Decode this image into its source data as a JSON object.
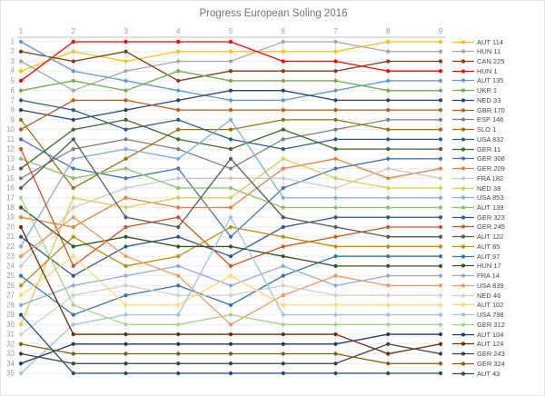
{
  "chart_data": {
    "type": "line",
    "subtype": "bump-rank-progression",
    "title": "Progress European Soling 2016",
    "xlabel": "",
    "ylabel": "",
    "x_axis_position": "top",
    "x_ticks": [
      "1",
      "2",
      "3",
      "4",
      "5",
      "6",
      "7",
      "8",
      "9"
    ],
    "y_ticks": [
      "1",
      "2",
      "3",
      "4",
      "5",
      "6",
      "7",
      "8",
      "9",
      "10",
      "11",
      "12",
      "13",
      "14",
      "15",
      "16",
      "17",
      "18",
      "19",
      "20",
      "21",
      "22",
      "23",
      "24",
      "25",
      "26",
      "27",
      "28",
      "29",
      "30",
      "31",
      "32",
      "33",
      "34",
      "35"
    ],
    "y_axis": {
      "min": 1,
      "max": 35,
      "inverted": true,
      "meaning": "position"
    },
    "grid": true,
    "legend_position": "right",
    "axis_color": "#bfbfbf",
    "tick_label_color": "#9a9a9a",
    "title_color": "#737373",
    "series": [
      {
        "name": "AUT 114",
        "color": "#FFC000",
        "values": [
          4,
          2,
          3,
          2,
          2,
          2,
          2,
          1,
          1
        ]
      },
      {
        "name": "HUN 11",
        "color": "#A6A6A6",
        "values": [
          3,
          6,
          4,
          3,
          3,
          1,
          1,
          2,
          2
        ]
      },
      {
        "name": "CAN 225",
        "color": "#843C0C",
        "values": [
          2,
          3,
          2,
          5,
          4,
          4,
          4,
          3,
          3
        ]
      },
      {
        "name": "HUN 1",
        "color": "#FF0000",
        "values": [
          5,
          1,
          1,
          1,
          1,
          3,
          3,
          4,
          4
        ]
      },
      {
        "name": "AUT 135",
        "color": "#5B9BD5",
        "values": [
          1,
          4,
          5,
          6,
          7,
          7,
          6,
          5,
          5
        ]
      },
      {
        "name": "UKR 1",
        "color": "#70AD47",
        "values": [
          6,
          5,
          6,
          4,
          5,
          5,
          5,
          6,
          6
        ]
      },
      {
        "name": "NED 33",
        "color": "#264478",
        "values": [
          8,
          9,
          8,
          7,
          6,
          6,
          7,
          7,
          7
        ]
      },
      {
        "name": "GBR 170",
        "color": "#C55A11",
        "values": [
          10,
          7,
          7,
          8,
          8,
          8,
          8,
          8,
          8
        ]
      },
      {
        "name": "ESP 146",
        "color": "#7F7F7F",
        "values": [
          15,
          12,
          11,
          12,
          14,
          11,
          10,
          9,
          9
        ]
      },
      {
        "name": "SLO 1",
        "color": "#997300",
        "values": [
          9,
          16,
          13,
          10,
          10,
          9,
          9,
          10,
          10
        ]
      },
      {
        "name": "USA 832",
        "color": "#255E91",
        "values": [
          7,
          8,
          10,
          9,
          11,
          12,
          11,
          11,
          11
        ]
      },
      {
        "name": "GER 11",
        "color": "#43682B",
        "values": [
          14,
          10,
          9,
          11,
          12,
          10,
          12,
          12,
          12
        ]
      },
      {
        "name": "GER 308",
        "color": "#4472C4",
        "values": [
          11,
          14,
          15,
          14,
          21,
          16,
          14,
          13,
          13
        ]
      },
      {
        "name": "GER 209",
        "color": "#ED7D31",
        "values": [
          19,
          20,
          17,
          18,
          18,
          14,
          13,
          15,
          14
        ]
      },
      {
        "name": "FRA 182",
        "color": "#C9C9C9",
        "values": [
          24,
          18,
          16,
          15,
          15,
          15,
          16,
          14,
          15
        ]
      },
      {
        "name": "NED 38",
        "color": "#D6D046",
        "values": [
          30,
          17,
          18,
          17,
          17,
          13,
          15,
          16,
          16
        ]
      },
      {
        "name": "USA 853",
        "color": "#7CAFDD",
        "values": [
          22,
          13,
          12,
          13,
          9,
          17,
          17,
          17,
          17
        ]
      },
      {
        "name": "AUT 139",
        "color": "#8CC168",
        "values": [
          13,
          15,
          14,
          16,
          16,
          18,
          18,
          18,
          18
        ]
      },
      {
        "name": "GER 323",
        "color": "#2F5597",
        "values": [
          21,
          25,
          22,
          21,
          23,
          20,
          19,
          19,
          19
        ]
      },
      {
        "name": "GER 245",
        "color": "#D94F1E",
        "values": [
          12,
          24,
          20,
          19,
          24,
          22,
          21,
          20,
          20
        ]
      },
      {
        "name": "AUT 122",
        "color": "#595959",
        "values": [
          16,
          11,
          19,
          20,
          13,
          19,
          20,
          21,
          21
        ]
      },
      {
        "name": "AUT 85",
        "color": "#BF8F00",
        "values": [
          26,
          21,
          24,
          23,
          20,
          21,
          22,
          22,
          22
        ]
      },
      {
        "name": "AUT 97",
        "color": "#2E75B6",
        "values": [
          25,
          29,
          27,
          26,
          28,
          25,
          23,
          23,
          23
        ]
      },
      {
        "name": "HUN 17",
        "color": "#375623",
        "values": [
          18,
          22,
          21,
          22,
          22,
          23,
          24,
          24,
          24
        ]
      },
      {
        "name": "FRA 14",
        "color": "#8FAADC",
        "values": [
          28,
          26,
          25,
          24,
          26,
          24,
          26,
          25,
          25
        ]
      },
      {
        "name": "USA 839",
        "color": "#F1975A",
        "values": [
          23,
          19,
          23,
          25,
          30,
          27,
          25,
          26,
          26
        ]
      },
      {
        "name": "NED 46",
        "color": "#D0CECE",
        "values": [
          31,
          27,
          26,
          27,
          27,
          26,
          27,
          27,
          27
        ]
      },
      {
        "name": "AUT 102",
        "color": "#FFD966",
        "values": [
          27,
          23,
          28,
          28,
          25,
          28,
          28,
          28,
          28
        ]
      },
      {
        "name": "USA 798",
        "color": "#9DC3E6",
        "values": [
          35,
          30,
          29,
          29,
          19,
          29,
          29,
          29,
          29
        ]
      },
      {
        "name": "GER 312",
        "color": "#A9D18E",
        "values": [
          17,
          28,
          30,
          30,
          29,
          30,
          30,
          30,
          30
        ]
      },
      {
        "name": "AUT 104",
        "color": "#203864",
        "values": [
          34,
          32,
          32,
          32,
          32,
          32,
          32,
          31,
          31
        ]
      },
      {
        "name": "AUT 124",
        "color": "#6E2C00",
        "values": [
          20,
          31,
          31,
          31,
          31,
          31,
          31,
          33,
          32
        ]
      },
      {
        "name": "GER 243",
        "color": "#404040",
        "values": [
          33,
          34,
          34,
          34,
          34,
          34,
          34,
          32,
          33
        ]
      },
      {
        "name": "GER 324",
        "color": "#7F6000",
        "values": [
          32,
          33,
          33,
          33,
          33,
          33,
          33,
          34,
          34
        ]
      },
      {
        "name": "AUT 43",
        "color": "#1F4E79",
        "values": [
          29,
          35,
          35,
          35,
          35,
          35,
          35,
          35,
          35
        ]
      }
    ]
  }
}
